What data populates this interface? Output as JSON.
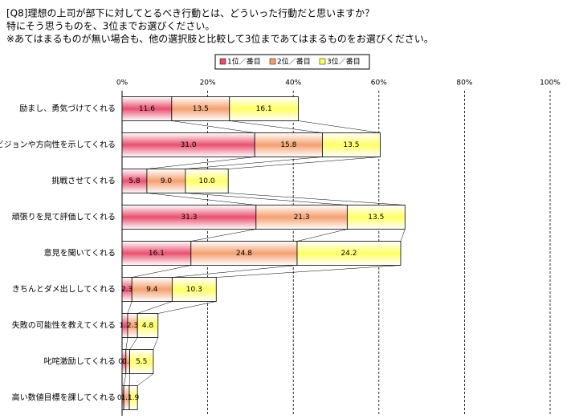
{
  "chart_data": {
    "type": "bar",
    "orientation": "horizontal",
    "stacked": true,
    "title_lines": [
      "[Q8]理想の上司が部下に対してとるべき行動とは、どういった行動だと思いますか？",
      "特にそう思うものを、3位までお選びください。",
      "※あてはまるものが無い場合も、他の選択肢と比較して3位まであてはまるものをお選びください。"
    ],
    "categories": [
      "励まし、勇気づけてくれる",
      "ビジョンや方向性を示してくれる",
      "挑戦させてくれる",
      "頑張りを見て評価してくれる",
      "意見を聞いてくれる",
      "きちんとダメ出ししてくれる",
      "失敗の可能性を教えてくれる",
      "叱咤激励してくれる",
      "高い数値目標を課してくれる"
    ],
    "series": [
      {
        "name": "1位／番目",
        "color": "#e8506e",
        "values": [
          11.6,
          31.0,
          5.8,
          31.3,
          16.1,
          2.3,
          1.3,
          0.9,
          0.4
        ],
        "value_labels": [
          "11.6",
          "31.0",
          "5.8",
          "31.3",
          "16.1",
          "2.3",
          "1.3",
          "0.9",
          "0.4"
        ]
      },
      {
        "name": "2位／番目",
        "color": "#f4a070",
        "values": [
          13.5,
          15.8,
          9.0,
          21.3,
          24.8,
          9.4,
          2.3,
          0.9,
          1.3
        ],
        "value_labels": [
          "13.5",
          "15.8",
          "9.0",
          "21.3",
          "24.8",
          "9.4",
          "2.3",
          "0.9",
          "1.3"
        ]
      },
      {
        "name": "3位／番目",
        "color": "#ffff66",
        "values": [
          16.1,
          13.5,
          10.0,
          13.5,
          24.2,
          10.3,
          4.8,
          5.5,
          1.9
        ],
        "value_labels": [
          "16.1",
          "13.5",
          "10.0",
          "13.5",
          "24.2",
          "10.3",
          "4.8",
          "5.5",
          "1.9"
        ]
      }
    ],
    "xlim": [
      0,
      100
    ],
    "xticks": [
      {
        "value": 0,
        "label": "0%"
      },
      {
        "value": 20,
        "label": "20%"
      },
      {
        "value": 40,
        "label": "40%"
      },
      {
        "value": 60,
        "label": "60%"
      },
      {
        "value": 80,
        "label": "80%"
      },
      {
        "value": 100,
        "label": "100%"
      }
    ],
    "grid": true,
    "legend": "top"
  }
}
